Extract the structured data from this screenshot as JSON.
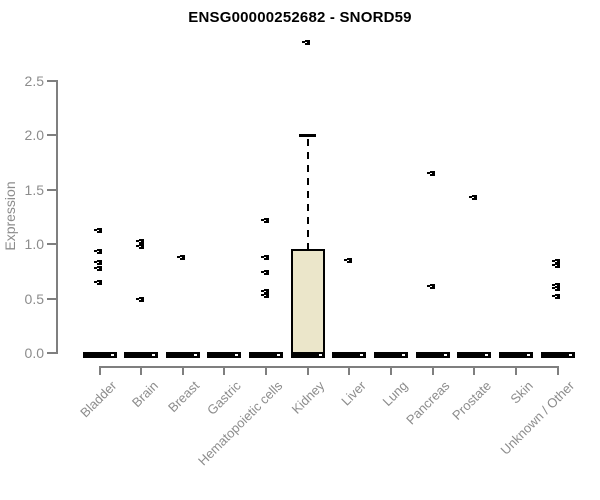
{
  "chart_data": {
    "type": "boxplot",
    "title": "ENSG00000252682 - SNORD59",
    "xlabel": "",
    "ylabel": "Expression",
    "ylim": [
      0,
      2.5
    ],
    "yticks": [
      "0.0",
      "0.5",
      "1.0",
      "1.5",
      "2.0",
      "2.5"
    ],
    "grid": false,
    "legend": "none",
    "axis_color": "#7f7f7f",
    "label_color": "#8c8c8c",
    "point_color": "#000000",
    "box_fill": "#ebe6ca",
    "box_border": "#000000",
    "categories": [
      "Bladder",
      "Brain",
      "Breast",
      "Gastric",
      "Hematopoietic cells",
      "Kidney",
      "Liver",
      "Lung",
      "Pancreas",
      "Prostate",
      "Skin",
      "Unknown / Other"
    ],
    "boxes": [
      {
        "category": "Bladder",
        "q1": 0,
        "median": 0,
        "q3": 0,
        "whisker_low": 0,
        "whisker_high": 0,
        "outliers": [
          1.13,
          0.93,
          0.83,
          0.78,
          0.65
        ]
      },
      {
        "category": "Brain",
        "q1": 0,
        "median": 0,
        "q3": 0,
        "whisker_low": 0,
        "whisker_high": 0,
        "outliers": [
          1.03,
          0.98,
          0.49
        ]
      },
      {
        "category": "Breast",
        "q1": 0,
        "median": 0,
        "q3": 0,
        "whisker_low": 0,
        "whisker_high": 0,
        "outliers": [
          0.88
        ]
      },
      {
        "category": "Gastric",
        "q1": 0,
        "median": 0,
        "q3": 0,
        "whisker_low": 0,
        "whisker_high": 0,
        "outliers": []
      },
      {
        "category": "Hematopoietic cells",
        "q1": 0,
        "median": 0,
        "q3": 0,
        "whisker_low": 0,
        "whisker_high": 0,
        "outliers": [
          1.22,
          0.88,
          0.74,
          0.57,
          0.53
        ]
      },
      {
        "category": "Kidney",
        "q1": 0,
        "median": 0,
        "q3": 0.96,
        "whisker_low": 0,
        "whisker_high": 2.0,
        "outliers": [
          2.85
        ]
      },
      {
        "category": "Liver",
        "q1": 0,
        "median": 0,
        "q3": 0,
        "whisker_low": 0,
        "whisker_high": 0,
        "outliers": [
          0.85
        ]
      },
      {
        "category": "Lung",
        "q1": 0,
        "median": 0,
        "q3": 0,
        "whisker_low": 0,
        "whisker_high": 0,
        "outliers": []
      },
      {
        "category": "Pancreas",
        "q1": 0,
        "median": 0,
        "q3": 0,
        "whisker_low": 0,
        "whisker_high": 0,
        "outliers": [
          1.65,
          0.61
        ]
      },
      {
        "category": "Prostate",
        "q1": 0,
        "median": 0,
        "q3": 0,
        "whisker_low": 0,
        "whisker_high": 0,
        "outliers": [
          1.43
        ]
      },
      {
        "category": "Skin",
        "q1": 0,
        "median": 0,
        "q3": 0,
        "whisker_low": 0,
        "whisker_high": 0,
        "outliers": []
      },
      {
        "category": "Unknown / Other",
        "q1": 0,
        "median": 0,
        "q3": 0,
        "whisker_low": 0,
        "whisker_high": 0,
        "outliers": [
          0.84,
          0.81,
          0.62,
          0.59,
          0.52
        ]
      }
    ]
  }
}
